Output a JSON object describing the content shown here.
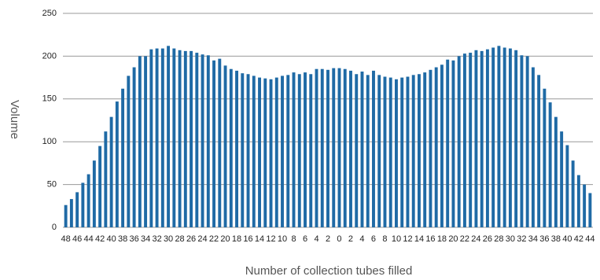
{
  "chart_data": {
    "type": "bar",
    "x_label": "Number of collection tubes filled",
    "y_label": "Volume",
    "color": "#1f6aa5",
    "grid": true,
    "ylim": [
      0,
      250
    ],
    "yticks": [
      0,
      50,
      100,
      150,
      200,
      250
    ],
    "categories": [
      "48",
      null,
      "46",
      null,
      "44",
      null,
      "42",
      null,
      "40",
      null,
      "38",
      null,
      "36",
      null,
      "34",
      null,
      "32",
      null,
      "30",
      null,
      "28",
      null,
      "26",
      null,
      "24",
      null,
      "22",
      null,
      "20",
      null,
      "18",
      null,
      "16",
      null,
      "14",
      null,
      "12",
      null,
      "10",
      null,
      "8",
      null,
      "6",
      null,
      "4",
      null,
      "2",
      null,
      "0",
      null,
      "2",
      null,
      "4",
      null,
      "6",
      null,
      "8",
      null,
      "10",
      null,
      "12",
      null,
      "14",
      null,
      "16",
      null,
      "18",
      null,
      "20",
      null,
      "22",
      null,
      "24",
      null,
      "26",
      null,
      "28",
      null,
      "30",
      null,
      "32",
      null,
      "34",
      null,
      "36",
      null,
      "38",
      null,
      "40",
      null,
      "42",
      null,
      "44"
    ],
    "values": [
      26,
      33,
      41,
      52,
      62,
      78,
      95,
      112,
      129,
      147,
      162,
      177,
      187,
      200,
      200,
      208,
      209,
      209,
      212,
      209,
      207,
      206,
      206,
      204,
      202,
      201,
      195,
      197,
      189,
      185,
      183,
      180,
      179,
      177,
      175,
      174,
      173,
      175,
      177,
      178,
      181,
      179,
      181,
      179,
      185,
      185,
      184,
      186,
      186,
      185,
      183,
      179,
      182,
      178,
      183,
      178,
      176,
      175,
      173,
      175,
      176,
      178,
      179,
      181,
      184,
      187,
      190,
      196,
      195,
      200,
      203,
      204,
      207,
      206,
      208,
      210,
      212,
      210,
      209,
      207,
      201,
      200,
      187,
      178,
      162,
      146,
      129,
      112,
      96,
      78,
      61,
      50,
      40
    ]
  }
}
